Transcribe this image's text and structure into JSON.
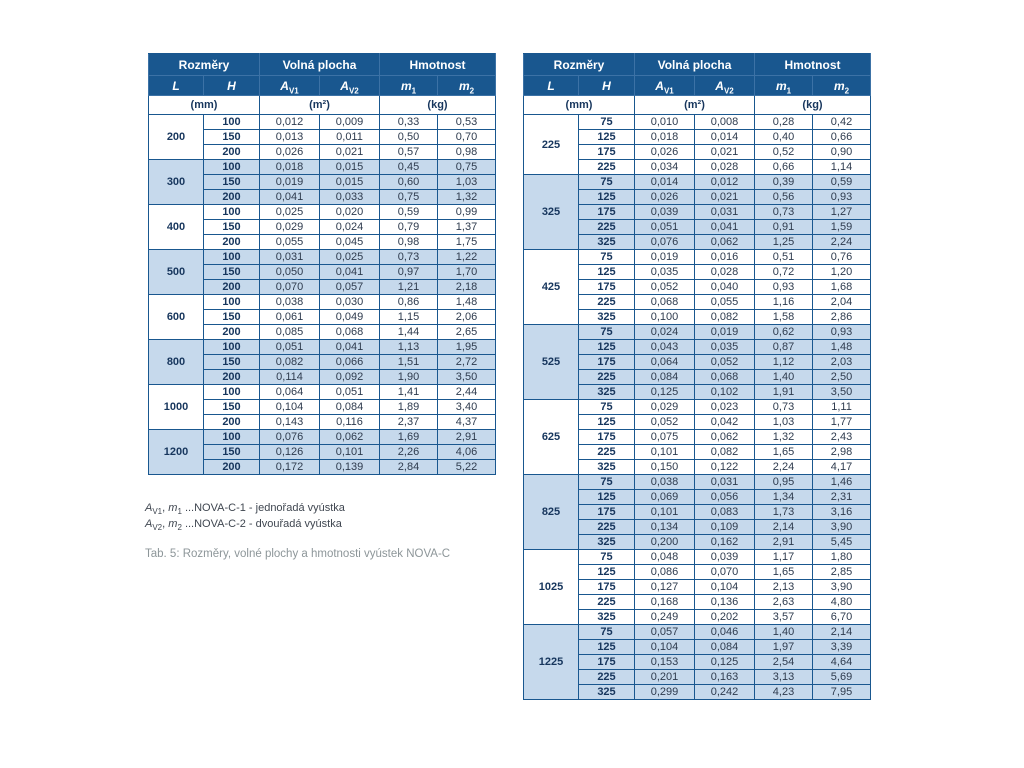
{
  "colors": {
    "header_bg": "#19578f",
    "border": "#19578f",
    "shaded_row_bg": "#c6d9ec",
    "header_text": "#ffffff",
    "units_text": "#17365d",
    "caption_text": "#8d9699"
  },
  "header": {
    "sections": [
      "Rozměry",
      "Volná plocha",
      "Hmotnost"
    ],
    "columns": [
      [
        {
          "t": "L",
          "s": "i"
        }
      ],
      [
        {
          "t": "H",
          "s": "i"
        }
      ],
      [
        {
          "t": "A",
          "s": "i"
        },
        {
          "t": "V1",
          "s": "sub"
        }
      ],
      [
        {
          "t": "A",
          "s": "i"
        },
        {
          "t": "V2",
          "s": "sub"
        }
      ],
      [
        {
          "t": "m",
          "s": "i"
        },
        {
          "t": "1",
          "s": "sub"
        }
      ],
      [
        {
          "t": "m",
          "s": "i"
        },
        {
          "t": "2",
          "s": "sub"
        }
      ]
    ],
    "units": [
      "(mm)",
      "(m²)",
      "(kg)"
    ]
  },
  "tables": [
    {
      "name": "left",
      "groups": [
        {
          "L": "200",
          "shaded": false,
          "rows": [
            [
              "100",
              "0,012",
              "0,009",
              "0,33",
              "0,53"
            ],
            [
              "150",
              "0,013",
              "0,011",
              "0,50",
              "0,70"
            ],
            [
              "200",
              "0,026",
              "0,021",
              "0,57",
              "0,98"
            ]
          ]
        },
        {
          "L": "300",
          "shaded": true,
          "rows": [
            [
              "100",
              "0,018",
              "0,015",
              "0,45",
              "0,75"
            ],
            [
              "150",
              "0,019",
              "0,015",
              "0,60",
              "1,03"
            ],
            [
              "200",
              "0,041",
              "0,033",
              "0,75",
              "1,32"
            ]
          ]
        },
        {
          "L": "400",
          "shaded": false,
          "rows": [
            [
              "100",
              "0,025",
              "0,020",
              "0,59",
              "0,99"
            ],
            [
              "150",
              "0,029",
              "0,024",
              "0,79",
              "1,37"
            ],
            [
              "200",
              "0,055",
              "0,045",
              "0,98",
              "1,75"
            ]
          ]
        },
        {
          "L": "500",
          "shaded": true,
          "rows": [
            [
              "100",
              "0,031",
              "0,025",
              "0,73",
              "1,22"
            ],
            [
              "150",
              "0,050",
              "0,041",
              "0,97",
              "1,70"
            ],
            [
              "200",
              "0,070",
              "0,057",
              "1,21",
              "2,18"
            ]
          ]
        },
        {
          "L": "600",
          "shaded": false,
          "rows": [
            [
              "100",
              "0,038",
              "0,030",
              "0,86",
              "1,48"
            ],
            [
              "150",
              "0,061",
              "0,049",
              "1,15",
              "2,06"
            ],
            [
              "200",
              "0,085",
              "0,068",
              "1,44",
              "2,65"
            ]
          ]
        },
        {
          "L": "800",
          "shaded": true,
          "rows": [
            [
              "100",
              "0,051",
              "0,041",
              "1,13",
              "1,95"
            ],
            [
              "150",
              "0,082",
              "0,066",
              "1,51",
              "2,72"
            ],
            [
              "200",
              "0,114",
              "0,092",
              "1,90",
              "3,50"
            ]
          ]
        },
        {
          "L": "1000",
          "shaded": false,
          "rows": [
            [
              "100",
              "0,064",
              "0,051",
              "1,41",
              "2,44"
            ],
            [
              "150",
              "0,104",
              "0,084",
              "1,89",
              "3,40"
            ],
            [
              "200",
              "0,143",
              "0,116",
              "2,37",
              "4,37"
            ]
          ]
        },
        {
          "L": "1200",
          "shaded": true,
          "rows": [
            [
              "100",
              "0,076",
              "0,062",
              "1,69",
              "2,91"
            ],
            [
              "150",
              "0,126",
              "0,101",
              "2,26",
              "4,06"
            ],
            [
              "200",
              "0,172",
              "0,139",
              "2,84",
              "5,22"
            ]
          ]
        }
      ]
    },
    {
      "name": "right",
      "groups": [
        {
          "L": "225",
          "shaded": false,
          "rows": [
            [
              "75",
              "0,010",
              "0,008",
              "0,28",
              "0,42"
            ],
            [
              "125",
              "0,018",
              "0,014",
              "0,40",
              "0,66"
            ],
            [
              "175",
              "0,026",
              "0,021",
              "0,52",
              "0,90"
            ],
            [
              "225",
              "0,034",
              "0,028",
              "0,66",
              "1,14"
            ]
          ]
        },
        {
          "L": "325",
          "shaded": true,
          "rows": [
            [
              "75",
              "0,014",
              "0,012",
              "0,39",
              "0,59"
            ],
            [
              "125",
              "0,026",
              "0,021",
              "0,56",
              "0,93"
            ],
            [
              "175",
              "0,039",
              "0,031",
              "0,73",
              "1,27"
            ],
            [
              "225",
              "0,051",
              "0,041",
              "0,91",
              "1,59"
            ],
            [
              "325",
              "0,076",
              "0,062",
              "1,25",
              "2,24"
            ]
          ]
        },
        {
          "L": "425",
          "shaded": false,
          "rows": [
            [
              "75",
              "0,019",
              "0,016",
              "0,51",
              "0,76"
            ],
            [
              "125",
              "0,035",
              "0,028",
              "0,72",
              "1,20"
            ],
            [
              "175",
              "0,052",
              "0,040",
              "0,93",
              "1,68"
            ],
            [
              "225",
              "0,068",
              "0,055",
              "1,16",
              "2,04"
            ],
            [
              "325",
              "0,100",
              "0,082",
              "1,58",
              "2,86"
            ]
          ]
        },
        {
          "L": "525",
          "shaded": true,
          "rows": [
            [
              "75",
              "0,024",
              "0,019",
              "0,62",
              "0,93"
            ],
            [
              "125",
              "0,043",
              "0,035",
              "0,87",
              "1,48"
            ],
            [
              "175",
              "0,064",
              "0,052",
              "1,12",
              "2,03"
            ],
            [
              "225",
              "0,084",
              "0,068",
              "1,40",
              "2,50"
            ],
            [
              "325",
              "0,125",
              "0,102",
              "1,91",
              "3,50"
            ]
          ]
        },
        {
          "L": "625",
          "shaded": false,
          "rows": [
            [
              "75",
              "0,029",
              "0,023",
              "0,73",
              "1,11"
            ],
            [
              "125",
              "0,052",
              "0,042",
              "1,03",
              "1,77"
            ],
            [
              "175",
              "0,075",
              "0,062",
              "1,32",
              "2,43"
            ],
            [
              "225",
              "0,101",
              "0,082",
              "1,65",
              "2,98"
            ],
            [
              "325",
              "0,150",
              "0,122",
              "2,24",
              "4,17"
            ]
          ]
        },
        {
          "L": "825",
          "shaded": true,
          "rows": [
            [
              "75",
              "0,038",
              "0,031",
              "0,95",
              "1,46"
            ],
            [
              "125",
              "0,069",
              "0,056",
              "1,34",
              "2,31"
            ],
            [
              "175",
              "0,101",
              "0,083",
              "1,73",
              "3,16"
            ],
            [
              "225",
              "0,134",
              "0,109",
              "2,14",
              "3,90"
            ],
            [
              "325",
              "0,200",
              "0,162",
              "2,91",
              "5,45"
            ]
          ]
        },
        {
          "L": "1025",
          "shaded": false,
          "rows": [
            [
              "75",
              "0,048",
              "0,039",
              "1,17",
              "1,80"
            ],
            [
              "125",
              "0,086",
              "0,070",
              "1,65",
              "2,85"
            ],
            [
              "175",
              "0,127",
              "0,104",
              "2,13",
              "3,90"
            ],
            [
              "225",
              "0,168",
              "0,136",
              "2,63",
              "4,80"
            ],
            [
              "325",
              "0,249",
              "0,202",
              "3,57",
              "6,70"
            ]
          ]
        },
        {
          "L": "1225",
          "shaded": true,
          "rows": [
            [
              "75",
              "0,057",
              "0,046",
              "1,40",
              "2,14"
            ],
            [
              "125",
              "0,104",
              "0,084",
              "1,97",
              "3,39"
            ],
            [
              "175",
              "0,153",
              "0,125",
              "2,54",
              "4,64"
            ],
            [
              "225",
              "0,201",
              "0,163",
              "3,13",
              "5,69"
            ],
            [
              "325",
              "0,299",
              "0,242",
              "4,23",
              "7,95"
            ]
          ]
        }
      ]
    }
  ],
  "footnotes": [
    {
      "segments": [
        {
          "t": "A",
          "s": "i"
        },
        {
          "t": "V1",
          "s": "sub"
        },
        {
          "t": ", ",
          "s": "p"
        },
        {
          "t": "m",
          "s": "i"
        },
        {
          "t": "1",
          "s": "sub"
        },
        {
          "t": " ...NOVA-C-1 - jednořadá vyústka",
          "s": "p"
        }
      ]
    },
    {
      "segments": [
        {
          "t": "A",
          "s": "i"
        },
        {
          "t": "V2",
          "s": "sub"
        },
        {
          "t": ", ",
          "s": "p"
        },
        {
          "t": "m",
          "s": "i"
        },
        {
          "t": "2",
          "s": "sub"
        },
        {
          "t": " ...NOVA-C-2 - dvouřadá vyústka",
          "s": "p"
        }
      ]
    }
  ],
  "caption": "Tab. 5: Rozměry, volné plochy a hmotnosti vyústek NOVA-C"
}
